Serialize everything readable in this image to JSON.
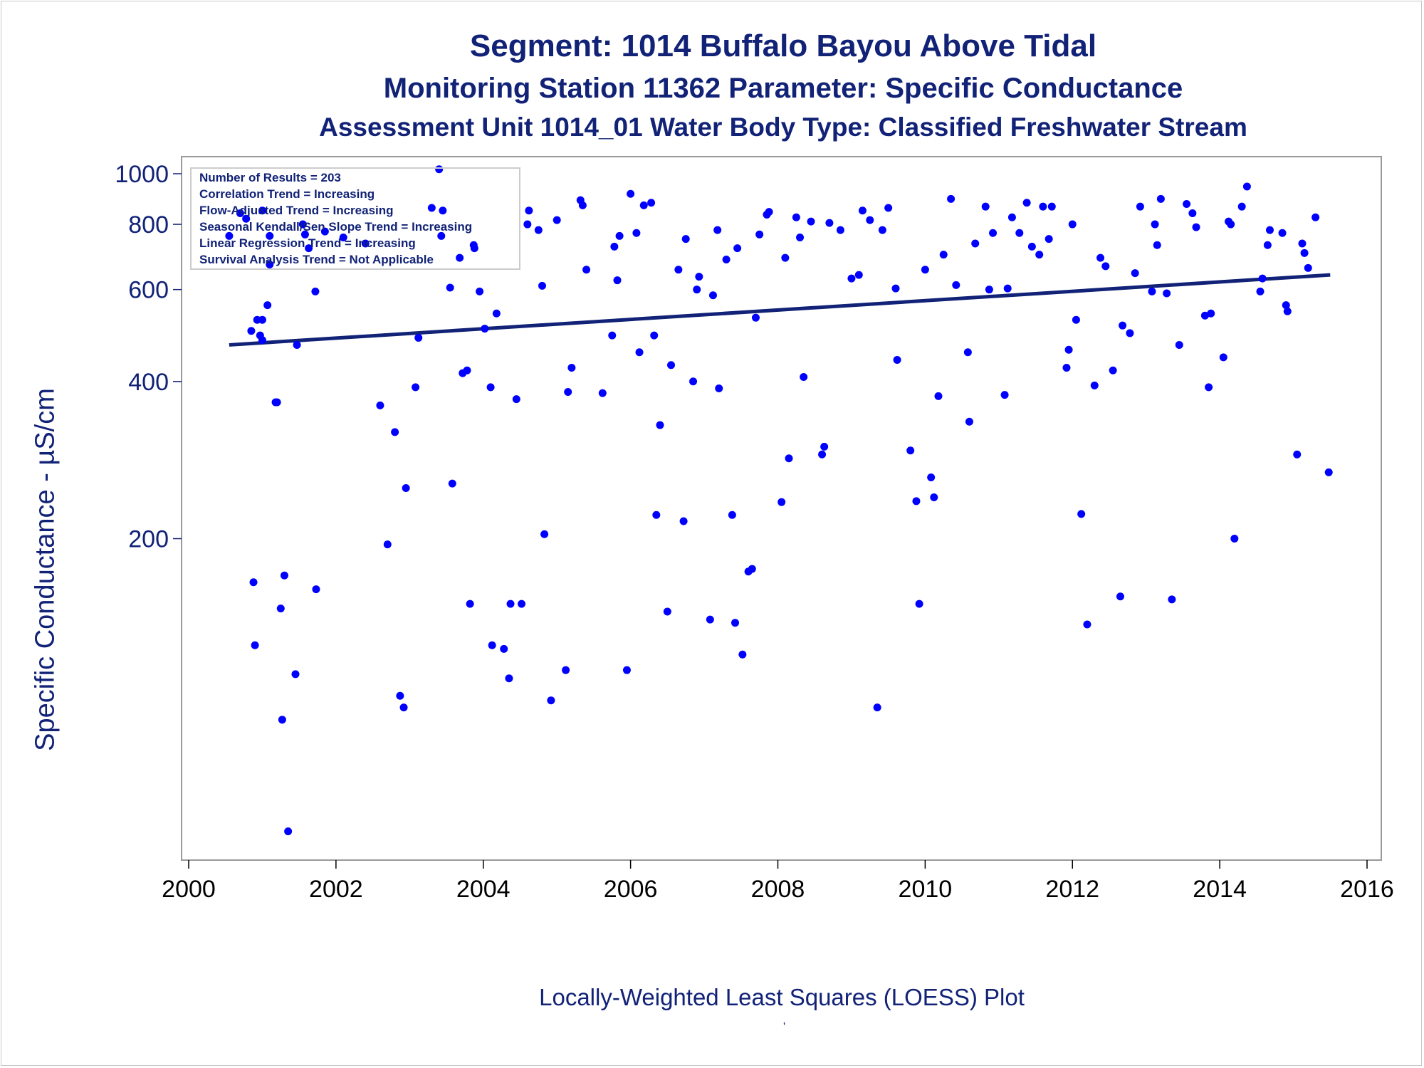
{
  "chart_data": {
    "type": "scatter",
    "title": "Segment: 1014  Buffalo Bayou Above Tidal",
    "subtitle": "Monitoring Station 11362 Parameter: Specific Conductance",
    "subtitle2": "Assessment Unit 1014_01   Water Body Type: Classified Freshwater Stream",
    "xlabel": "Locally-Weighted Least Squares (LOESS) Plot",
    "ylabel": "Specific Conductance -  µS/cm",
    "footer_mark": "'",
    "x_scale": "linear",
    "y_scale": "log",
    "xlim": [
      2000,
      2016
    ],
    "ylim": [
      50,
      1000
    ],
    "x_ticks": [
      2000,
      2002,
      2004,
      2006,
      2008,
      2010,
      2012,
      2014,
      2016
    ],
    "y_ticks": [
      200,
      400,
      600,
      800,
      1000
    ],
    "grid": false,
    "legend_position": "top-left",
    "legend": [
      "Number of Results = 203",
      "Correlation Trend = Increasing",
      "Flow-Adjusted Trend = Increasing",
      "Seasonal Kendall/Sen Slope Trend = Increasing",
      "Linear Regression Trend = Increasing",
      "Survival Analysis Trend = Not Applicable"
    ],
    "colors": {
      "points": "#0000ff",
      "trend_line": "#112277",
      "text": "#112277",
      "frame": "#999999"
    },
    "trend_line": {
      "x": [
        2000.55,
        2015.5
      ],
      "y": [
        470,
        640
      ]
    },
    "points": [
      [
        2000.55,
        760
      ],
      [
        2000.7,
        840
      ],
      [
        2000.78,
        820
      ],
      [
        2000.85,
        500
      ],
      [
        2000.88,
        165
      ],
      [
        2000.9,
        125
      ],
      [
        2000.93,
        525
      ],
      [
        2000.97,
        490
      ],
      [
        2001.0,
        525
      ],
      [
        2001.0,
        480
      ],
      [
        2001.07,
        560
      ],
      [
        2001.1,
        760
      ],
      [
        2001.1,
        670
      ],
      [
        2001.18,
        365
      ],
      [
        2001.2,
        365
      ],
      [
        2001.25,
        147
      ],
      [
        2001.27,
        90
      ],
      [
        2001.3,
        170
      ],
      [
        2001.35,
        55
      ],
      [
        2001.45,
        110
      ],
      [
        2001.47,
        470
      ],
      [
        2001.55,
        800
      ],
      [
        2001.58,
        765
      ],
      [
        2001.63,
        720
      ],
      [
        2001.72,
        595
      ],
      [
        2001.73,
        160
      ],
      [
        2001.85,
        775
      ],
      [
        2002.1,
        755
      ],
      [
        2002.4,
        735
      ],
      [
        2002.6,
        360
      ],
      [
        2002.7,
        195
      ],
      [
        2002.8,
        320
      ],
      [
        2002.87,
        100
      ],
      [
        2002.92,
        95
      ],
      [
        2002.95,
        250
      ],
      [
        2003.08,
        390
      ],
      [
        2003.12,
        485
      ],
      [
        2003.3,
        860
      ],
      [
        2003.4,
        1020
      ],
      [
        2003.43,
        760
      ],
      [
        2003.45,
        850
      ],
      [
        2003.55,
        605
      ],
      [
        2003.58,
        255
      ],
      [
        2003.68,
        690
      ],
      [
        2003.72,
        415
      ],
      [
        2003.78,
        420
      ],
      [
        2003.82,
        150
      ],
      [
        2003.87,
        730
      ],
      [
        2003.88,
        720
      ],
      [
        2003.95,
        595
      ],
      [
        2004.02,
        505
      ],
      [
        2004.1,
        390
      ],
      [
        2004.12,
        125
      ],
      [
        2004.18,
        540
      ],
      [
        2004.28,
        123
      ],
      [
        2004.35,
        108
      ],
      [
        2004.37,
        150
      ],
      [
        2004.45,
        370
      ],
      [
        2004.52,
        150
      ],
      [
        2004.6,
        800
      ],
      [
        2004.62,
        850
      ],
      [
        2004.75,
        780
      ],
      [
        2004.8,
        610
      ],
      [
        2004.83,
        204
      ],
      [
        2004.92,
        98
      ],
      [
        2005.0,
        815
      ],
      [
        2005.12,
        112
      ],
      [
        2005.15,
        382
      ],
      [
        2005.2,
        425
      ],
      [
        2005.32,
        890
      ],
      [
        2005.35,
        870
      ],
      [
        2005.4,
        655
      ],
      [
        2005.62,
        380
      ],
      [
        2005.75,
        490
      ],
      [
        2005.78,
        725
      ],
      [
        2005.82,
        625
      ],
      [
        2005.85,
        760
      ],
      [
        2005.95,
        112
      ],
      [
        2006.0,
        915
      ],
      [
        2006.08,
        770
      ],
      [
        2006.12,
        455
      ],
      [
        2006.18,
        870
      ],
      [
        2006.28,
        880
      ],
      [
        2006.32,
        490
      ],
      [
        2006.35,
        222
      ],
      [
        2006.4,
        330
      ],
      [
        2006.5,
        145
      ],
      [
        2006.55,
        430
      ],
      [
        2006.65,
        655
      ],
      [
        2006.72,
        216
      ],
      [
        2006.75,
        750
      ],
      [
        2006.85,
        400
      ],
      [
        2006.9,
        600
      ],
      [
        2006.93,
        635
      ],
      [
        2007.08,
        140
      ],
      [
        2007.12,
        585
      ],
      [
        2007.18,
        780
      ],
      [
        2007.2,
        388
      ],
      [
        2007.3,
        685
      ],
      [
        2007.38,
        222
      ],
      [
        2007.42,
        138
      ],
      [
        2007.45,
        720
      ],
      [
        2007.52,
        120
      ],
      [
        2007.6,
        173
      ],
      [
        2007.65,
        175
      ],
      [
        2007.7,
        530
      ],
      [
        2007.75,
        765
      ],
      [
        2007.85,
        835
      ],
      [
        2007.88,
        845
      ],
      [
        2008.05,
        235
      ],
      [
        2008.1,
        690
      ],
      [
        2008.15,
        285
      ],
      [
        2008.25,
        825
      ],
      [
        2008.3,
        755
      ],
      [
        2008.35,
        408
      ],
      [
        2008.45,
        810
      ],
      [
        2008.6,
        290
      ],
      [
        2008.63,
        300
      ],
      [
        2008.7,
        805
      ],
      [
        2008.85,
        780
      ],
      [
        2009.0,
        630
      ],
      [
        2009.1,
        640
      ],
      [
        2009.15,
        850
      ],
      [
        2009.25,
        815
      ],
      [
        2009.35,
        95
      ],
      [
        2009.42,
        780
      ],
      [
        2009.5,
        860
      ],
      [
        2009.6,
        603
      ],
      [
        2009.62,
        440
      ],
      [
        2009.8,
        295
      ],
      [
        2009.88,
        236
      ],
      [
        2009.92,
        150
      ],
      [
        2010.0,
        655
      ],
      [
        2010.08,
        262
      ],
      [
        2010.12,
        240
      ],
      [
        2010.18,
        375
      ],
      [
        2010.25,
        700
      ],
      [
        2010.35,
        895
      ],
      [
        2010.42,
        612
      ],
      [
        2010.58,
        455
      ],
      [
        2010.6,
        335
      ],
      [
        2010.68,
        735
      ],
      [
        2010.82,
        865
      ],
      [
        2010.87,
        600
      ],
      [
        2010.92,
        770
      ],
      [
        2011.08,
        377
      ],
      [
        2011.12,
        603
      ],
      [
        2011.18,
        825
      ],
      [
        2011.28,
        770
      ],
      [
        2011.38,
        880
      ],
      [
        2011.45,
        725
      ],
      [
        2011.55,
        700
      ],
      [
        2011.6,
        865
      ],
      [
        2011.68,
        750
      ],
      [
        2011.72,
        865
      ],
      [
        2011.92,
        425
      ],
      [
        2011.95,
        460
      ],
      [
        2012.0,
        800
      ],
      [
        2012.05,
        525
      ],
      [
        2012.12,
        223
      ],
      [
        2012.2,
        137
      ],
      [
        2012.3,
        393
      ],
      [
        2012.38,
        690
      ],
      [
        2012.45,
        665
      ],
      [
        2012.55,
        420
      ],
      [
        2012.65,
        155
      ],
      [
        2012.68,
        512
      ],
      [
        2012.78,
        495
      ],
      [
        2012.85,
        645
      ],
      [
        2012.92,
        865
      ],
      [
        2013.08,
        595
      ],
      [
        2013.12,
        800
      ],
      [
        2013.15,
        730
      ],
      [
        2013.2,
        895
      ],
      [
        2013.28,
        590
      ],
      [
        2013.35,
        153
      ],
      [
        2013.45,
        470
      ],
      [
        2013.55,
        875
      ],
      [
        2013.63,
        840
      ],
      [
        2013.68,
        790
      ],
      [
        2013.8,
        535
      ],
      [
        2013.85,
        390
      ],
      [
        2013.88,
        540
      ],
      [
        2014.05,
        445
      ],
      [
        2014.12,
        810
      ],
      [
        2014.15,
        800
      ],
      [
        2014.2,
        200
      ],
      [
        2014.3,
        865
      ],
      [
        2014.37,
        945
      ],
      [
        2014.55,
        595
      ],
      [
        2014.58,
        630
      ],
      [
        2014.65,
        730
      ],
      [
        2014.68,
        780
      ],
      [
        2014.85,
        770
      ],
      [
        2014.9,
        560
      ],
      [
        2014.92,
        545
      ],
      [
        2015.05,
        290
      ],
      [
        2015.12,
        735
      ],
      [
        2015.15,
        705
      ],
      [
        2015.2,
        660
      ],
      [
        2015.3,
        825
      ],
      [
        2015.48,
        268
      ],
      [
        2001.0,
        850
      ]
    ]
  }
}
